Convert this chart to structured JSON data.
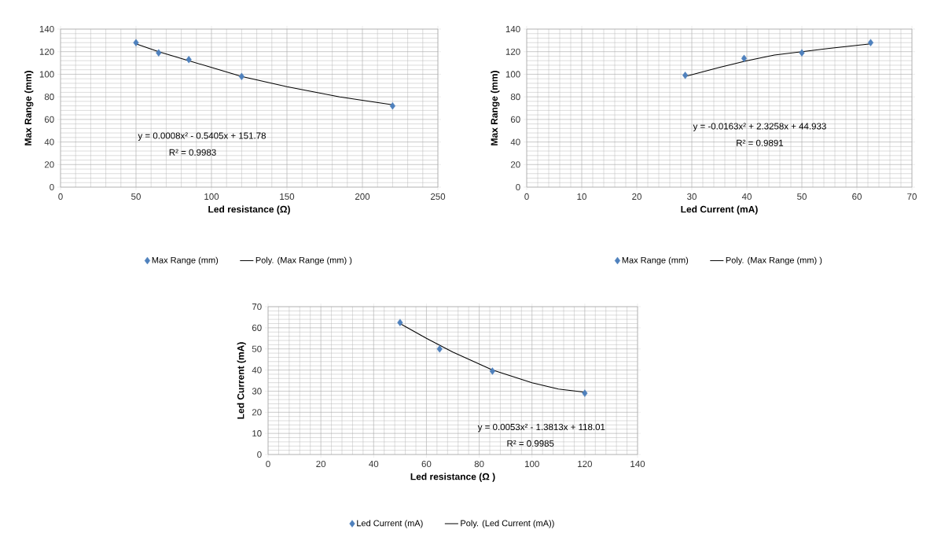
{
  "chart_data": [
    {
      "type": "scatter",
      "xlabel": "Led resistance (Ω)",
      "ylabel": "Max Range (mm)",
      "xlim": [
        0,
        250
      ],
      "ylim": [
        0,
        140
      ],
      "xticks": [
        0,
        50,
        100,
        150,
        200,
        250
      ],
      "yticks": [
        0,
        20,
        40,
        60,
        80,
        100,
        120,
        140
      ],
      "grid": true,
      "legend": "bottom",
      "series": [
        {
          "name": "Max Range  (mm)",
          "marker": "diamond",
          "color": "#4f81bd",
          "x": [
            50,
            65,
            85,
            120,
            220
          ],
          "values": [
            128,
            119,
            113,
            98,
            72
          ]
        },
        {
          "name": "Poly. (Max Range  (mm) )",
          "type": "line",
          "marker": "none",
          "line_style": "solid",
          "color": "#000000",
          "x": [
            50,
            65,
            85,
            100,
            120,
            150,
            185,
            220
          ],
          "values": [
            127,
            120,
            112,
            106,
            98,
            89,
            80,
            73
          ]
        }
      ],
      "annotations": [
        "y = 0.0008x² - 0.5405x + 151.78",
        "R² = 0.9983"
      ]
    },
    {
      "type": "scatter",
      "xlabel": "Led Current  (mA)",
      "ylabel": "Max Range (mm)",
      "xlim": [
        0,
        70
      ],
      "ylim": [
        0,
        140
      ],
      "xticks": [
        0,
        10,
        20,
        30,
        40,
        50,
        60,
        70
      ],
      "yticks": [
        0,
        20,
        40,
        60,
        80,
        100,
        120,
        140
      ],
      "grid": true,
      "legend": "bottom",
      "series": [
        {
          "name": "Max Range  (mm)",
          "marker": "diamond",
          "color": "#4f81bd",
          "x": [
            28.8,
            39.5,
            50,
            62.5
          ],
          "values": [
            99,
            114,
            119,
            128
          ]
        },
        {
          "name": "Poly. (Max Range  (mm) )",
          "type": "line",
          "marker": "none",
          "line_style": "solid",
          "color": "#000000",
          "x": [
            28.8,
            35,
            40,
            45,
            50,
            55,
            62.5
          ],
          "values": [
            98,
            106,
            112,
            117,
            120,
            123,
            127
          ]
        }
      ],
      "annotations": [
        "y = -0.0163x² + 2.3258x + 44.933",
        "R² = 0.9891"
      ]
    },
    {
      "type": "scatter",
      "xlabel": "Led resistance (Ω )",
      "ylabel": "Led Current  (mA)",
      "xlim": [
        0,
        140
      ],
      "ylim": [
        0,
        70
      ],
      "xticks": [
        0,
        20,
        40,
        60,
        80,
        100,
        120,
        140
      ],
      "yticks": [
        0,
        10,
        20,
        30,
        40,
        50,
        60,
        70
      ],
      "grid": true,
      "legend": "bottom",
      "series": [
        {
          "name": "Led Current  (mA)",
          "marker": "diamond",
          "color": "#4f81bd",
          "x": [
            50,
            65,
            85,
            120
          ],
          "values": [
            62.5,
            50,
            39.5,
            29
          ]
        },
        {
          "name": "Poly. (Led Current  (mA))",
          "type": "line",
          "marker": "none",
          "line_style": "solid",
          "color": "#000000",
          "x": [
            50,
            60,
            70,
            85,
            100,
            110,
            120
          ],
          "values": [
            62,
            55,
            48.5,
            40,
            34,
            31,
            29.5
          ]
        }
      ],
      "annotations": [
        "y = 0.0053x² - 1.3813x + 118.01",
        "R² = 0.9985"
      ]
    }
  ]
}
